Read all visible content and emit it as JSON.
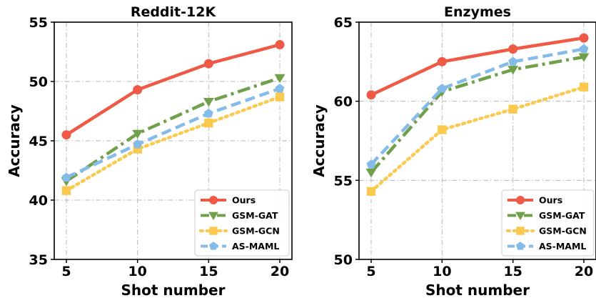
{
  "chart_data": [
    {
      "type": "line",
      "title": "Reddit-12K",
      "xlabel": "Shot number",
      "ylabel": "Accuracy",
      "x": [
        5,
        10,
        15,
        20
      ],
      "xticks": [
        "5",
        "10",
        "15",
        "20"
      ],
      "yticks": [
        "35",
        "40",
        "45",
        "50",
        "55"
      ],
      "ylim": [
        35,
        55
      ],
      "grid": true,
      "legend_position": "bottom-right",
      "series": [
        {
          "name": "Ours",
          "values": [
            45.5,
            49.3,
            51.5,
            53.1
          ],
          "color": "#EE5A45",
          "dash": "solid",
          "marker": "circle"
        },
        {
          "name": "GSM-GAT",
          "values": [
            41.6,
            45.6,
            48.3,
            50.3
          ],
          "color": "#70A04A",
          "dash": "dashdot",
          "marker": "triangle-down"
        },
        {
          "name": "GSM-GCN",
          "values": [
            40.8,
            44.3,
            46.5,
            48.7
          ],
          "color": "#FBC94E",
          "dash": "dotted",
          "marker": "square"
        },
        {
          "name": "AS-MAML",
          "values": [
            41.9,
            44.7,
            47.3,
            49.4
          ],
          "color": "#85BBE8",
          "dash": "dashed",
          "marker": "pentagon"
        }
      ]
    },
    {
      "type": "line",
      "title": "Enzymes",
      "xlabel": "Shot number",
      "ylabel": "Accuracy",
      "x": [
        5,
        10,
        15,
        20
      ],
      "xticks": [
        "5",
        "10",
        "15",
        "20"
      ],
      "yticks": [
        "50",
        "55",
        "60",
        "65"
      ],
      "ylim": [
        50,
        65
      ],
      "grid": true,
      "legend_position": "bottom-right",
      "series": [
        {
          "name": "Ours",
          "values": [
            60.4,
            62.5,
            63.3,
            64.0
          ],
          "color": "#EE5A45",
          "dash": "solid",
          "marker": "circle"
        },
        {
          "name": "GSM-GAT",
          "values": [
            55.5,
            60.6,
            62.0,
            62.8
          ],
          "color": "#70A04A",
          "dash": "dashdot",
          "marker": "triangle-down"
        },
        {
          "name": "GSM-GCN",
          "values": [
            54.3,
            58.2,
            59.5,
            60.9
          ],
          "color": "#FBC94E",
          "dash": "dotted",
          "marker": "square"
        },
        {
          "name": "AS-MAML",
          "values": [
            56.0,
            60.8,
            62.5,
            63.3
          ],
          "color": "#85BBE8",
          "dash": "dashed",
          "marker": "pentagon"
        }
      ]
    }
  ]
}
